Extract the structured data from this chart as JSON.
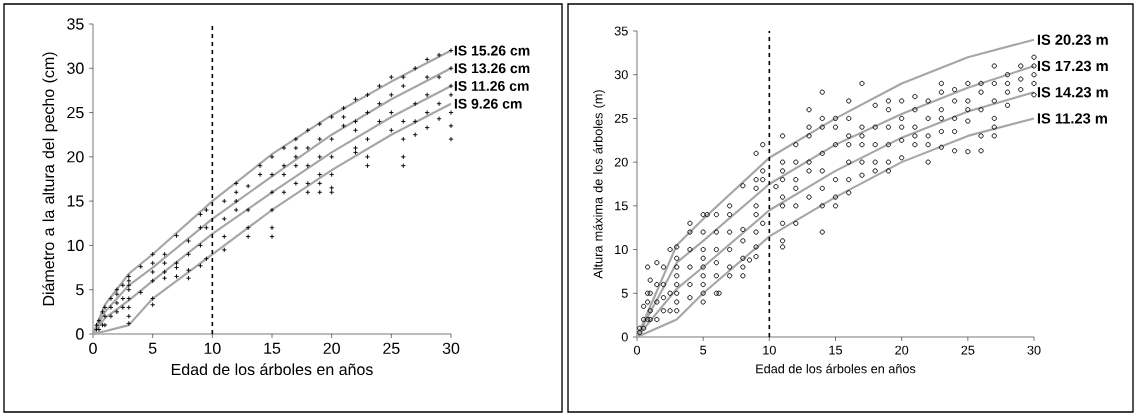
{
  "chart_data": [
    {
      "type": "scatter",
      "xlabel": "Edad de los árboles en años",
      "ylabel": "Diámetro a la altura del pecho (cm)",
      "xlim": [
        0,
        30
      ],
      "ylim": [
        0,
        35
      ],
      "xticks": [
        0,
        5,
        10,
        15,
        20,
        25,
        30
      ],
      "yticks": [
        0,
        5,
        10,
        15,
        20,
        25,
        30,
        35
      ],
      "ref_lines": [
        {
          "axis": "x",
          "value": 10,
          "color": "#000000",
          "line_style": "dashed"
        }
      ],
      "series": [
        {
          "type": "line",
          "name": "IS 15.26 cm",
          "color": "#a6a6a6",
          "x": [
            0,
            1,
            3,
            5,
            10,
            15,
            20,
            25,
            30
          ],
          "values": [
            0,
            3.3,
            6.8,
            9,
            15,
            20.3,
            24.7,
            28.5,
            32
          ]
        },
        {
          "type": "line",
          "name": "IS 13.26 cm",
          "color": "#a6a6a6",
          "x": [
            0,
            1,
            3,
            5,
            10,
            15,
            20,
            25,
            30
          ],
          "values": [
            0,
            2.5,
            5.5,
            7.5,
            13,
            17.8,
            22.5,
            26.5,
            30
          ]
        },
        {
          "type": "line",
          "name": "IS 11.26 cm",
          "color": "#a6a6a6",
          "x": [
            0,
            1,
            3,
            5,
            10,
            15,
            20,
            25,
            30
          ],
          "values": [
            0,
            1.8,
            3.8,
            6,
            11.3,
            16,
            20.5,
            24.5,
            28
          ]
        },
        {
          "type": "line",
          "name": "IS 9.26 cm",
          "color": "#a6a6a6",
          "x": [
            0,
            1,
            3,
            5,
            10,
            15,
            20,
            25,
            30
          ],
          "values": [
            0,
            0.3,
            1,
            4,
            9,
            14,
            18.5,
            22.5,
            26
          ]
        },
        {
          "color": "#000000",
          "marker": "cross",
          "x": [
            0.3,
            0.3,
            0.5,
            0.5,
            0.8,
            0.8,
            1,
            1,
            1,
            1.5,
            1.5,
            1.5,
            2,
            2,
            2,
            2,
            2.5,
            2.5,
            2.5,
            3,
            3,
            3,
            3,
            3,
            3,
            3,
            3,
            4,
            4,
            5,
            5,
            5,
            5,
            5,
            5,
            6,
            6,
            6,
            6,
            7,
            7,
            7,
            7,
            8,
            8,
            8,
            8,
            9,
            9,
            9,
            9,
            9.5,
            9.5,
            9.5,
            11,
            11,
            11,
            11,
            12,
            12,
            12,
            12,
            13,
            13,
            13,
            13,
            14,
            14,
            15,
            15,
            15,
            15,
            15,
            15,
            16,
            16,
            16,
            16,
            17,
            17,
            17,
            17,
            17,
            18,
            18,
            18,
            18,
            18,
            19,
            19,
            19,
            19,
            19,
            19,
            20,
            20,
            20,
            20,
            20,
            20,
            21,
            21,
            21,
            22,
            22,
            22,
            22,
            22,
            23,
            23,
            23,
            23,
            23,
            24,
            24,
            24,
            25,
            25,
            25,
            25,
            26,
            26,
            26,
            26,
            26,
            26,
            27,
            27,
            27,
            27,
            28,
            28,
            28,
            28,
            28,
            29,
            29,
            29,
            29,
            30,
            30,
            30,
            30,
            30,
            30,
            30
          ],
          "values": [
            0.5,
            1,
            0.5,
            1.5,
            1,
            2.5,
            1,
            2,
            3,
            2,
            3,
            4,
            2.5,
            3.5,
            4.5,
            5,
            3,
            4,
            5.5,
            1.2,
            2,
            3,
            4,
            5,
            5.5,
            6,
            6.5,
            4.7,
            7.6,
            3.3,
            4,
            6,
            7,
            8,
            9,
            6.3,
            7,
            8,
            9,
            6.5,
            7.5,
            8,
            11.1,
            6.3,
            7.2,
            9,
            10.5,
            7.7,
            10,
            12,
            13.5,
            8.5,
            12,
            14,
            9.5,
            11,
            13,
            15,
            14,
            15,
            16,
            17,
            11,
            12,
            14,
            16.7,
            18,
            19,
            11,
            12,
            14,
            16,
            18,
            20,
            16,
            18,
            19,
            21,
            17,
            19,
            20,
            21,
            22,
            16,
            17,
            19,
            21,
            23,
            16,
            17,
            18,
            20,
            22,
            23.7,
            16,
            16.5,
            18,
            20,
            22,
            24.5,
            23.5,
            24.5,
            25.5,
            20.5,
            21,
            23,
            24,
            26.5,
            19,
            20,
            22,
            25,
            27,
            24,
            26,
            28,
            23,
            25,
            27,
            29,
            19,
            20,
            22,
            24,
            28,
            29,
            22.5,
            24,
            26,
            30,
            23.3,
            25,
            27,
            29,
            31,
            24.3,
            26,
            29,
            31.5,
            22,
            23.5,
            25,
            27,
            28,
            30,
            32
          ]
        }
      ]
    },
    {
      "type": "scatter",
      "xlabel": "Edad de los árboles en años",
      "ylabel": "Altura máxima de los árboles (m)",
      "xlim": [
        0,
        30
      ],
      "ylim": [
        0,
        35
      ],
      "xticks": [
        0,
        5,
        10,
        15,
        20,
        25,
        30
      ],
      "yticks": [
        0,
        5,
        10,
        15,
        20,
        25,
        30,
        35
      ],
      "ref_lines": [
        {
          "axis": "x",
          "value": 10,
          "color": "#000000",
          "line_style": "dashed"
        }
      ],
      "series": [
        {
          "type": "line",
          "name": "IS 20.23 m",
          "color": "#a6a6a6",
          "x": [
            0,
            3,
            5,
            10,
            15,
            20,
            25,
            30
          ],
          "values": [
            0,
            10.5,
            13.5,
            20.5,
            25,
            29,
            32,
            34
          ]
        },
        {
          "type": "line",
          "name": "IS 17.23 m",
          "color": "#a6a6a6",
          "x": [
            0,
            3,
            5,
            10,
            15,
            20,
            25,
            30
          ],
          "values": [
            0,
            8.5,
            11,
            17.5,
            22,
            25.5,
            28.5,
            31
          ]
        },
        {
          "type": "line",
          "name": "IS 14.23 m",
          "color": "#a6a6a6",
          "x": [
            0,
            3,
            5,
            10,
            15,
            20,
            25,
            30
          ],
          "values": [
            0,
            5.5,
            8,
            14.5,
            19,
            22.8,
            25.8,
            28
          ]
        },
        {
          "type": "line",
          "name": "IS 11.23 m",
          "color": "#a6a6a6",
          "x": [
            0,
            3,
            5,
            10,
            15,
            20,
            25,
            30
          ],
          "values": [
            0,
            2,
            5,
            11.5,
            16,
            20,
            23,
            25
          ]
        },
        {
          "color": "#000000",
          "marker": "circle",
          "x": [
            0.2,
            0.2,
            0.5,
            0.5,
            0.5,
            0.8,
            0.8,
            0.8,
            0.8,
            1,
            1,
            1,
            1,
            1.5,
            1.5,
            1.5,
            1.5,
            2,
            2,
            2,
            2,
            2.5,
            2.5,
            2.5,
            3,
            3,
            3,
            3,
            3,
            3,
            3,
            3,
            4,
            4,
            4,
            4,
            4,
            4,
            5,
            5,
            5,
            5,
            5,
            5,
            5,
            5,
            5,
            5.3,
            6,
            6,
            6,
            6,
            6,
            6,
            6.2,
            7,
            7,
            7,
            7,
            7,
            7,
            8,
            8,
            8,
            8,
            8,
            8,
            8.5,
            9,
            9,
            9,
            9,
            9,
            9,
            9,
            9,
            9.5,
            9.5,
            9.5,
            9.5,
            10.5,
            11,
            11,
            11,
            11,
            11,
            11,
            11,
            11,
            11,
            12,
            12,
            12,
            12,
            12,
            12,
            13,
            13,
            13,
            13,
            13,
            13,
            14,
            14,
            14,
            14,
            14,
            14,
            14,
            14,
            15,
            15,
            15,
            15,
            15,
            15,
            16,
            16,
            16,
            16,
            16,
            16,
            16,
            17,
            17,
            17,
            17,
            17,
            17,
            18,
            18,
            18,
            18,
            18,
            19,
            19,
            19,
            19,
            19,
            19,
            20,
            20,
            20,
            20,
            20,
            21,
            21,
            21,
            21,
            21,
            22,
            22,
            22,
            22,
            22,
            23,
            23,
            23,
            23,
            23,
            23,
            24,
            24,
            24,
            24,
            24,
            25,
            25,
            25,
            25,
            25,
            26,
            26,
            26,
            26,
            26,
            27,
            27,
            27,
            27,
            27,
            27,
            28,
            28,
            28,
            28,
            29,
            29,
            29,
            30,
            30,
            30,
            30,
            30
          ],
          "values": [
            0.5,
            1,
            1,
            2,
            3.5,
            2,
            4,
            5,
            8,
            2,
            3,
            5,
            6.5,
            2,
            4,
            6,
            8.5,
            3,
            4.5,
            6,
            8,
            3,
            5,
            10,
            3,
            4,
            5,
            6,
            7,
            8,
            9,
            10.3,
            4.5,
            6,
            8,
            10,
            12,
            13,
            4,
            5,
            6,
            7,
            8,
            9,
            10,
            12,
            14,
            14,
            5,
            7,
            8.5,
            10,
            12,
            14,
            5,
            7,
            8,
            10,
            12,
            14,
            15,
            7,
            8,
            9,
            11,
            12.3,
            17.3,
            8.8,
            9.2,
            10.3,
            12,
            14,
            15,
            17,
            18,
            21,
            13,
            18,
            19,
            22,
            17.2,
            10.3,
            11,
            13,
            15,
            16,
            18,
            19,
            20,
            23,
            13,
            15,
            17,
            18,
            20,
            22,
            16,
            19,
            20,
            23,
            24,
            26,
            12,
            15,
            17,
            19,
            21,
            24,
            25,
            28,
            15,
            16,
            18,
            22,
            24,
            25,
            16.5,
            18,
            20,
            22,
            23,
            25,
            27,
            18.5,
            20,
            22,
            23,
            24,
            29,
            19,
            20,
            22,
            24,
            26.5,
            19,
            20,
            22,
            24,
            26,
            27,
            20.5,
            22.5,
            24,
            25,
            27,
            22,
            23,
            24,
            26,
            27.5,
            20,
            22,
            23,
            25,
            27,
            21.7,
            23.5,
            25,
            26,
            28,
            29,
            21.3,
            23.5,
            25,
            27,
            28.3,
            21.2,
            24.7,
            26,
            27,
            29,
            21.3,
            23,
            26,
            28,
            29,
            23,
            24,
            25,
            27,
            29,
            31,
            26.5,
            28,
            29,
            30,
            28.3,
            29.5,
            31,
            27.7,
            29,
            30,
            31,
            32
          ]
        }
      ]
    }
  ]
}
